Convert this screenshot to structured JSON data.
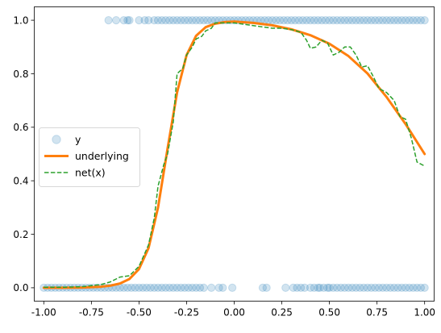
{
  "chart_data": {
    "type": "scatter",
    "xlim": [
      -1.05,
      1.05
    ],
    "ylim": [
      -0.05,
      1.05
    ],
    "xticks": [
      "-1.00",
      "-0.75",
      "-0.50",
      "-0.25",
      "0.00",
      "0.25",
      "0.50",
      "0.75",
      "1.00"
    ],
    "xtick_values": [
      -1.0,
      -0.75,
      -0.5,
      -0.25,
      0.0,
      0.25,
      0.5,
      0.75,
      1.0
    ],
    "yticks": [
      "0.0",
      "0.2",
      "0.4",
      "0.6",
      "0.8",
      "1.0"
    ],
    "ytick_values": [
      0.0,
      0.2,
      0.4,
      0.6,
      0.8,
      1.0
    ],
    "grid": false,
    "legend_position": "center-left",
    "series": [
      {
        "name": "y",
        "kind": "scatter",
        "color": "#1f77b4",
        "alpha": 0.2,
        "points_y0_x": [
          -1.0,
          -0.98,
          -0.96,
          -0.94,
          -0.92,
          -0.9,
          -0.88,
          -0.86,
          -0.84,
          -0.82,
          -0.8,
          -0.78,
          -0.76,
          -0.74,
          -0.72,
          -0.7,
          -0.68,
          -0.66,
          -0.64,
          -0.62,
          -0.6,
          -0.58,
          -0.56,
          -0.54,
          -0.52,
          -0.5,
          -0.48,
          -0.46,
          -0.44,
          -0.42,
          -0.4,
          -0.38,
          -0.36,
          -0.34,
          -0.32,
          -0.3,
          -0.28,
          -0.26,
          -0.24,
          -0.22,
          -0.2,
          -0.18,
          -0.16,
          -0.12,
          -0.08,
          -0.06,
          -0.01,
          0.15,
          0.17,
          0.27,
          0.31,
          0.33,
          0.35,
          0.37,
          0.4,
          0.42,
          0.44,
          0.45,
          0.47,
          0.49,
          0.5,
          0.52,
          0.54,
          0.56,
          0.58,
          0.6,
          0.62,
          0.64,
          0.66,
          0.68,
          0.7,
          0.72,
          0.74,
          0.76,
          0.78,
          0.8,
          0.82,
          0.84,
          0.86,
          0.88,
          0.9,
          0.92,
          0.94,
          0.96,
          0.98,
          1.0
        ],
        "points_y1_x": [
          -0.66,
          -0.62,
          -0.58,
          -0.56,
          -0.55,
          -0.5,
          -0.47,
          -0.45,
          -0.42,
          -0.4,
          -0.38,
          -0.36,
          -0.34,
          -0.32,
          -0.3,
          -0.28,
          -0.26,
          -0.24,
          -0.22,
          -0.2,
          -0.18,
          -0.16,
          -0.14,
          -0.12,
          -0.1,
          -0.08,
          -0.06,
          -0.04,
          -0.02,
          0.0,
          0.02,
          0.04,
          0.06,
          0.08,
          0.1,
          0.12,
          0.14,
          0.16,
          0.18,
          0.2,
          0.22,
          0.24,
          0.26,
          0.28,
          0.3,
          0.32,
          0.34,
          0.36,
          0.38,
          0.4,
          0.42,
          0.44,
          0.46,
          0.48,
          0.5,
          0.52,
          0.54,
          0.56,
          0.58,
          0.6,
          0.62,
          0.64,
          0.66,
          0.68,
          0.7,
          0.72,
          0.74,
          0.76,
          0.78,
          0.8,
          0.82,
          0.84,
          0.86,
          0.88,
          0.9,
          0.92,
          0.94,
          0.96,
          0.98,
          1.0
        ]
      },
      {
        "name": "underlying",
        "kind": "line",
        "color": "#ff7f0e",
        "style": "solid",
        "x": [
          -1.0,
          -0.9,
          -0.8,
          -0.7,
          -0.65,
          -0.6,
          -0.55,
          -0.5,
          -0.45,
          -0.4,
          -0.35,
          -0.3,
          -0.25,
          -0.2,
          -0.15,
          -0.1,
          -0.05,
          0.0,
          0.1,
          0.2,
          0.3,
          0.4,
          0.5,
          0.6,
          0.7,
          0.8,
          0.9,
          1.0
        ],
        "y": [
          0.0,
          0.0,
          0.001,
          0.004,
          0.008,
          0.016,
          0.033,
          0.07,
          0.148,
          0.3,
          0.52,
          0.73,
          0.87,
          0.942,
          0.974,
          0.987,
          0.993,
          0.995,
          0.99,
          0.981,
          0.966,
          0.944,
          0.912,
          0.866,
          0.801,
          0.713,
          0.612,
          0.5
        ]
      },
      {
        "name": "net(x)",
        "kind": "line",
        "color": "#2ca02c",
        "style": "dashed",
        "x": [
          -1.0,
          -0.9,
          -0.8,
          -0.7,
          -0.65,
          -0.6,
          -0.55,
          -0.5,
          -0.45,
          -0.42,
          -0.4,
          -0.37,
          -0.35,
          -0.32,
          -0.3,
          -0.27,
          -0.25,
          -0.22,
          -0.2,
          -0.17,
          -0.15,
          -0.12,
          -0.1,
          -0.05,
          0.0,
          0.05,
          0.1,
          0.15,
          0.2,
          0.25,
          0.3,
          0.35,
          0.38,
          0.4,
          0.43,
          0.46,
          0.49,
          0.52,
          0.55,
          0.58,
          0.61,
          0.64,
          0.67,
          0.7,
          0.73,
          0.76,
          0.8,
          0.84,
          0.87,
          0.9,
          0.93,
          0.96,
          1.0
        ],
        "y": [
          0.002,
          0.002,
          0.004,
          0.012,
          0.022,
          0.04,
          0.045,
          0.08,
          0.16,
          0.26,
          0.38,
          0.46,
          0.5,
          0.62,
          0.8,
          0.82,
          0.87,
          0.9,
          0.93,
          0.94,
          0.96,
          0.97,
          0.99,
          0.99,
          0.99,
          0.985,
          0.98,
          0.975,
          0.97,
          0.97,
          0.965,
          0.955,
          0.925,
          0.895,
          0.9,
          0.925,
          0.915,
          0.87,
          0.88,
          0.9,
          0.9,
          0.87,
          0.825,
          0.83,
          0.79,
          0.745,
          0.73,
          0.7,
          0.64,
          0.63,
          0.56,
          0.47,
          0.455
        ]
      }
    ]
  }
}
